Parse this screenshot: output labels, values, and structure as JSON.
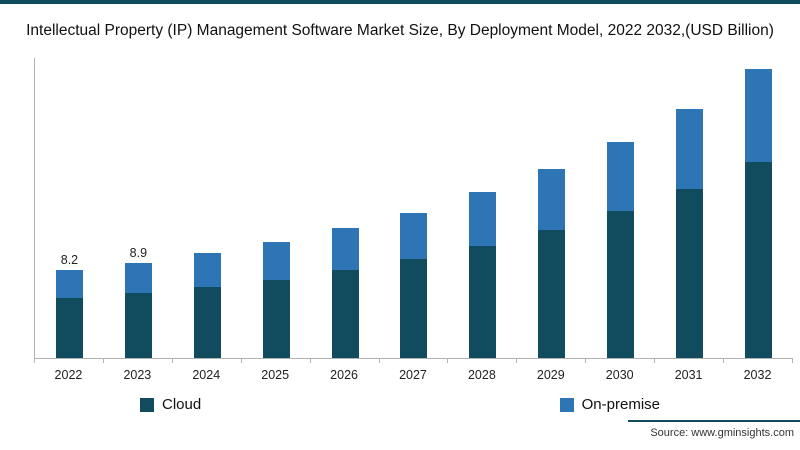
{
  "title": "Intellectual Property (IP) Management Software Market Size, By Deployment Model, 2022 2032,(USD Billion)",
  "source": "Source: www.gminsights.com",
  "colors": {
    "accent_rule": "#114c5e",
    "cloud": "#114c5e",
    "on_premise": "#2e75b6",
    "axis": "#b3b3b3"
  },
  "legend": [
    {
      "label": "Cloud",
      "color": "#114c5e"
    },
    {
      "label": "On-premise",
      "color": "#2e75b6"
    }
  ],
  "chart_data": {
    "type": "bar",
    "subtype": "stacked",
    "title": "Intellectual Property (IP) Management Software Market Size, By Deployment Model, 2022 2032,(USD Billion)",
    "xlabel": "",
    "ylabel": "USD Billion",
    "ylim": [
      0,
      28
    ],
    "grid": false,
    "legend_position": "bottom",
    "categories": [
      "2022",
      "2023",
      "2024",
      "2025",
      "2026",
      "2027",
      "2028",
      "2029",
      "2030",
      "2031",
      "2032"
    ],
    "series": [
      {
        "name": "Cloud",
        "color": "#114c5e",
        "values": [
          5.6,
          6.1,
          6.6,
          7.3,
          8.2,
          9.2,
          10.5,
          11.9,
          13.7,
          15.8,
          18.3
        ]
      },
      {
        "name": "On-premise",
        "color": "#2e75b6",
        "values": [
          2.6,
          2.8,
          3.2,
          3.5,
          3.9,
          4.3,
          5.0,
          5.7,
          6.4,
          7.5,
          8.7
        ]
      }
    ],
    "totals": [
      8.2,
      8.9,
      9.8,
      10.8,
      12.1,
      13.5,
      15.5,
      17.6,
      20.1,
      23.3,
      27.0
    ],
    "data_labels": [
      "8.2",
      "8.9",
      "",
      "",
      "",
      "",
      "",
      "",
      "",
      "",
      ""
    ]
  }
}
